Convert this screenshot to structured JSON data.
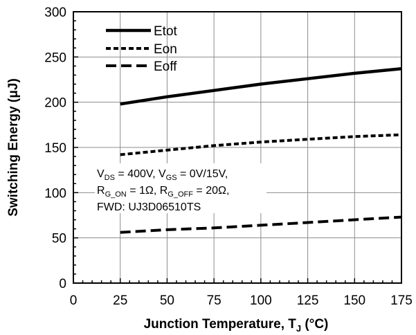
{
  "chart_data": {
    "type": "line",
    "xlabel_main": "Junction Temperature, T",
    "xlabel_sub": "J",
    "xlabel_tail": " (°C)",
    "ylabel": "Switching Energy (μJ)",
    "xlim": [
      0,
      175
    ],
    "ylim": [
      0,
      300
    ],
    "xticks": [
      "0",
      "25",
      "50",
      "75",
      "100",
      "125",
      "150",
      "175"
    ],
    "yticks": [
      "0",
      "50",
      "100",
      "150",
      "200",
      "250",
      "300"
    ],
    "grid": true,
    "legend_position": "top-left",
    "series": [
      {
        "name": "Etot",
        "style": "solid",
        "x": [
          25,
          50,
          75,
          100,
          125,
          150,
          175
        ],
        "y": [
          198,
          206,
          213,
          220,
          226,
          232,
          237
        ]
      },
      {
        "name": "Eon",
        "style": "dotted",
        "x": [
          25,
          50,
          75,
          100,
          125,
          150,
          175
        ],
        "y": [
          142,
          147,
          152,
          156,
          159,
          162,
          164
        ]
      },
      {
        "name": "Eoff",
        "style": "dashed",
        "x": [
          25,
          50,
          75,
          100,
          125,
          150,
          175
        ],
        "y": [
          56,
          59,
          61,
          64,
          67,
          70,
          73
        ]
      }
    ],
    "annotation": {
      "line1": {
        "v": "V",
        "ds": "DS",
        "a": " = 400V, V",
        "gs": "GS",
        "b": " = 0V/15V,"
      },
      "line2": {
        "r1": "R",
        "gon": "G_ON",
        "a": " = 1Ω, R",
        "goff": "G_OFF",
        "b": " = 20Ω,"
      },
      "line3": "FWD: UJ3D06510TS"
    }
  }
}
